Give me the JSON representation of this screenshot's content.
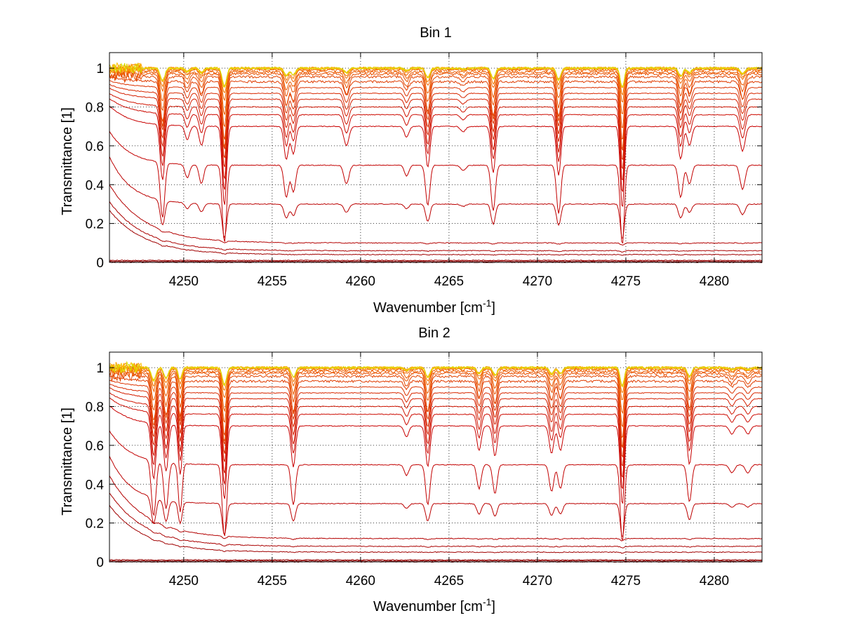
{
  "chart_data": [
    {
      "type": "line",
      "title": "Bin 1",
      "xlabel": "Wavenumber [cm",
      "xlabel_sup": "-1",
      "xlabel_end": "]",
      "ylabel": "Transmittance [1]",
      "xlim": [
        4245.8,
        4282.7
      ],
      "ylim": [
        0,
        1.08
      ],
      "xticks": [
        4250,
        4255,
        4260,
        4265,
        4270,
        4275,
        4280
      ],
      "xtick_labels": [
        "4250",
        "4255",
        "4260",
        "4265",
        "4270",
        "4275",
        "4280"
      ],
      "yticks": [
        0,
        0.2,
        0.4,
        0.6,
        0.8,
        1
      ],
      "ytick_labels": [
        "0",
        "0.2",
        "0.4",
        "0.6",
        "0.8",
        "1"
      ],
      "grid": true,
      "lines": [
        {
          "x": 4248.8,
          "depth": 1.0,
          "width": 0.18
        },
        {
          "x": 4250.2,
          "depth": 0.25,
          "width": 0.18
        },
        {
          "x": 4251.0,
          "depth": 0.35,
          "width": 0.18
        },
        {
          "x": 4252.3,
          "depth": 1.45,
          "width": 0.17
        },
        {
          "x": 4255.8,
          "depth": 0.6,
          "width": 0.18
        },
        {
          "x": 4256.2,
          "depth": 0.5,
          "width": 0.18
        },
        {
          "x": 4259.2,
          "depth": 0.35,
          "width": 0.2
        },
        {
          "x": 4262.6,
          "depth": 0.2,
          "width": 0.18
        },
        {
          "x": 4263.8,
          "depth": 0.75,
          "width": 0.17
        },
        {
          "x": 4265.8,
          "depth": 0.1,
          "width": 0.2
        },
        {
          "x": 4267.5,
          "depth": 0.85,
          "width": 0.17
        },
        {
          "x": 4271.2,
          "depth": 0.9,
          "width": 0.17
        },
        {
          "x": 4274.8,
          "depth": 1.5,
          "width": 0.16
        },
        {
          "x": 4278.1,
          "depth": 0.6,
          "width": 0.18
        },
        {
          "x": 4278.6,
          "depth": 0.35,
          "width": 0.18
        },
        {
          "x": 4281.6,
          "depth": 0.45,
          "width": 0.2
        }
      ],
      "series_baselines": [
        0.0,
        0.005,
        0.01,
        0.04,
        0.06,
        0.1,
        0.3,
        0.5,
        0.7,
        0.76,
        0.8,
        0.84,
        0.87,
        0.9,
        0.93,
        0.955,
        0.97,
        0.98,
        0.99,
        0.995,
        1.0,
        1.0,
        1.0,
        1.0
      ],
      "series_colors": [
        "#7f0000",
        "#8b0000",
        "#960000",
        "#a00000",
        "#aa0000",
        "#b30000",
        "#bb0000",
        "#c20000",
        "#c80000",
        "#cc0a00",
        "#d01400",
        "#d41e00",
        "#d82800",
        "#dc3200",
        "#e03c00",
        "#e44600",
        "#e85000",
        "#ec5a00",
        "#f06400",
        "#f47800",
        "#f88c00",
        "#faa000",
        "#fcc000",
        "#d8e000"
      ]
    },
    {
      "type": "line",
      "title": "Bin 2",
      "xlabel": "Wavenumber [cm",
      "xlabel_sup": "-1",
      "xlabel_end": "]",
      "ylabel": "Transmittance [1]",
      "xlim": [
        4245.8,
        4282.7
      ],
      "ylim": [
        0,
        1.08
      ],
      "xticks": [
        4250,
        4255,
        4260,
        4265,
        4270,
        4275,
        4280
      ],
      "xtick_labels": [
        "4250",
        "4255",
        "4260",
        "4265",
        "4270",
        "4275",
        "4280"
      ],
      "yticks": [
        0,
        0.2,
        0.4,
        0.6,
        0.8,
        1
      ],
      "ytick_labels": [
        "0",
        "0.2",
        "0.4",
        "0.6",
        "0.8",
        "1"
      ],
      "grid": true,
      "lines": [
        {
          "x": 4248.3,
          "depth": 1.0,
          "width": 0.18
        },
        {
          "x": 4249.0,
          "depth": 0.85,
          "width": 0.18
        },
        {
          "x": 4249.8,
          "depth": 0.9,
          "width": 0.15
        },
        {
          "x": 4252.3,
          "depth": 1.35,
          "width": 0.17
        },
        {
          "x": 4256.2,
          "depth": 0.75,
          "width": 0.17
        },
        {
          "x": 4262.6,
          "depth": 0.2,
          "width": 0.18
        },
        {
          "x": 4263.8,
          "depth": 0.75,
          "width": 0.17
        },
        {
          "x": 4266.7,
          "depth": 0.45,
          "width": 0.17
        },
        {
          "x": 4267.6,
          "depth": 0.55,
          "width": 0.17
        },
        {
          "x": 4270.8,
          "depth": 0.5,
          "width": 0.18
        },
        {
          "x": 4271.3,
          "depth": 0.45,
          "width": 0.18
        },
        {
          "x": 4274.8,
          "depth": 1.45,
          "width": 0.16
        },
        {
          "x": 4278.6,
          "depth": 0.7,
          "width": 0.17
        },
        {
          "x": 4281.0,
          "depth": 0.15,
          "width": 0.2
        },
        {
          "x": 4281.9,
          "depth": 0.15,
          "width": 0.2
        }
      ],
      "series_baselines": [
        0.0,
        0.005,
        0.01,
        0.05,
        0.08,
        0.12,
        0.3,
        0.5,
        0.7,
        0.76,
        0.8,
        0.84,
        0.87,
        0.9,
        0.93,
        0.955,
        0.97,
        0.98,
        0.99,
        0.995,
        1.0,
        1.0,
        1.0,
        1.0
      ],
      "series_colors": [
        "#7f0000",
        "#8b0000",
        "#960000",
        "#a00000",
        "#aa0000",
        "#b30000",
        "#bb0000",
        "#c20000",
        "#c80000",
        "#cc0a00",
        "#d01400",
        "#d41e00",
        "#d82800",
        "#dc3200",
        "#e03c00",
        "#e44600",
        "#e85000",
        "#ec5a00",
        "#f06400",
        "#f47800",
        "#f88c00",
        "#faa000",
        "#fcc000",
        "#d8e000"
      ]
    }
  ]
}
